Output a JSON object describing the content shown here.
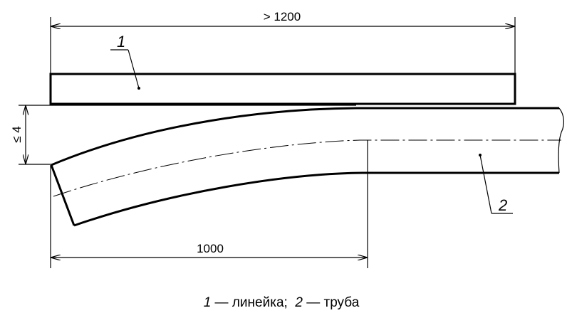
{
  "dimensions": {
    "ruler_length": "> 1200",
    "deviation": "≤ 4",
    "measure_length": "1000"
  },
  "callouts": {
    "ruler": "1",
    "pipe": "2"
  },
  "caption": {
    "item1_number": "1",
    "item1_text": " — линейка;  ",
    "item2_number": "2",
    "item2_text": " — труба"
  }
}
